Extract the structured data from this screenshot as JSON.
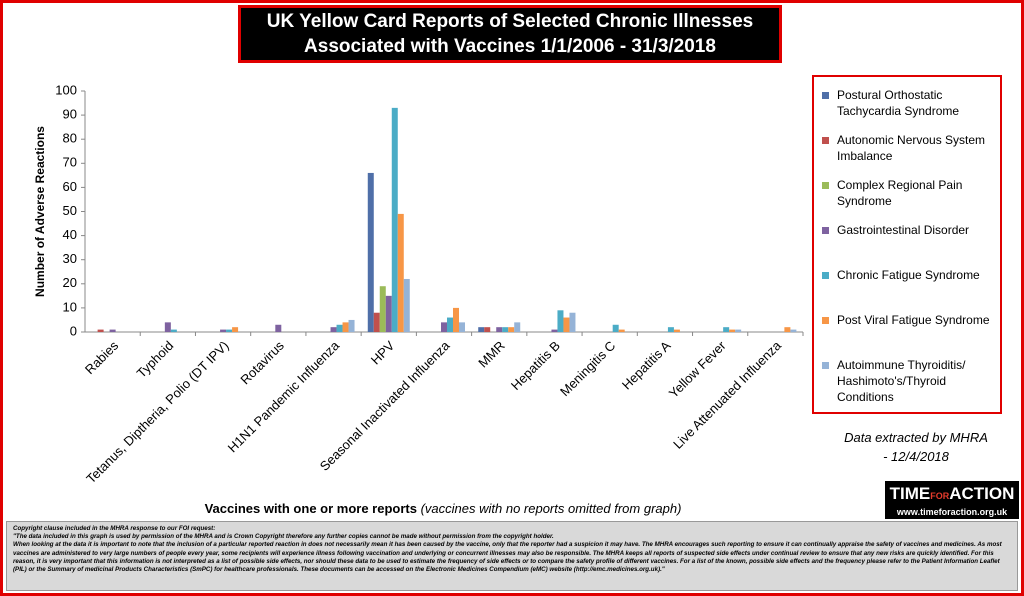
{
  "title": "UK Yellow Card Reports of Selected Chronic Illnesses Associated with Vaccines 1/1/2006 - 31/3/2018",
  "chart_data": {
    "type": "bar",
    "y_label": "Number of Adverse Reactions",
    "x_label": "Vaccines with one or more reports",
    "x_label_note": "(vaccines with no reports omitted from graph)",
    "categories": [
      "Rabies",
      "Typhoid",
      "Tetanus, Diptheria, Polio (DT IPV)",
      "Rotavirus",
      "H1N1 Pandemic Influenza",
      "HPV",
      "Seasonal Inactivated Influenza",
      "MMR",
      "Hepatitis B",
      "Meningitis C",
      "Hepatitis A",
      "Yellow Fever",
      "Live Attenuated Influenza"
    ],
    "series": [
      {
        "name": "Postural Orthostatic Tachycardia Syndrome",
        "color": "#4f6fa8",
        "values": [
          0,
          0,
          0,
          0,
          0,
          66,
          0,
          2,
          0,
          0,
          0,
          0,
          0
        ]
      },
      {
        "name": "Autonomic Nervous System Imbalance",
        "color": "#c0504d",
        "values": [
          1,
          0,
          0,
          0,
          0,
          8,
          0,
          2,
          0,
          0,
          0,
          0,
          0
        ]
      },
      {
        "name": "Complex Regional Pain Syndrome",
        "color": "#9bbb59",
        "values": [
          0,
          0,
          0,
          0,
          0,
          19,
          0,
          0,
          0,
          0,
          0,
          0,
          0
        ]
      },
      {
        "name": "Gastrointestinal Disorder",
        "color": "#7e62a0",
        "values": [
          1,
          4,
          1,
          3,
          2,
          15,
          4,
          2,
          1,
          0,
          0,
          0,
          0
        ]
      },
      {
        "name": "Chronic Fatigue Syndrome",
        "color": "#4bacc6",
        "values": [
          0,
          1,
          1,
          0,
          3,
          93,
          6,
          2,
          9,
          3,
          2,
          2,
          0
        ]
      },
      {
        "name": "Post Viral Fatigue Syndrome",
        "color": "#f79646",
        "values": [
          0,
          0,
          2,
          0,
          4,
          49,
          10,
          2,
          6,
          1,
          1,
          1,
          2
        ]
      },
      {
        "name": "Autoimmune Thyroiditis/ Hashimoto's/Thyroid Conditions",
        "color": "#95b3d7",
        "values": [
          0,
          0,
          0,
          0,
          5,
          22,
          4,
          4,
          8,
          0,
          0,
          1,
          1
        ]
      }
    ],
    "ylim": [
      0,
      100
    ],
    "yticks": [
      0,
      10,
      20,
      30,
      40,
      50,
      60,
      70,
      80,
      90,
      100
    ],
    "grid": false,
    "legend": "right"
  },
  "note": "Data extracted by MHRA - 12/4/2018",
  "logo": {
    "word1": "TIME",
    "word2": "FOR",
    "word3": "ACTION",
    "url": "www.timeforaction.org.uk"
  },
  "footer": {
    "heading": "Copyright clause included in the MHRA response to our FOI request:",
    "line1": "\"The data included in this graph is used by permission of the MHRA and is Crown Copyright therefore any further copies cannot be made without permission from the copyright holder.",
    "line2": "When looking at the data it is important to note that the inclusion of a particular reported reaction in does not necessarily mean it has been caused by the vaccine, only that the reporter had a suspicion it may have. The MHRA encourages such reporting to ensure it can continually appraise the safety of vaccines and medicines. As most vaccines are administered to very large numbers of people every year, some recipients will experience illness following vaccination and underlying or concurrent illnesses may also be responsible. The MHRA keeps all reports of suspected side effects under continual review to ensure that any new risks are quickly identified. For this reason, it is very important that this information is not interpreted as a list of possible side effects, nor should these data to be used to estimate the frequency of side effects or to compare the safety profile of different vaccines. For a list of the known, possible side effects and the frequency please refer to the Patient Information Leaflet (PIL) or the Summary of medicinal Products Characteristics (SmPC) for healthcare professionals. These documents can be accessed on the Electronic Medicines Compendium (eMC) website (http://emc.medicines.org.uk).\""
  }
}
